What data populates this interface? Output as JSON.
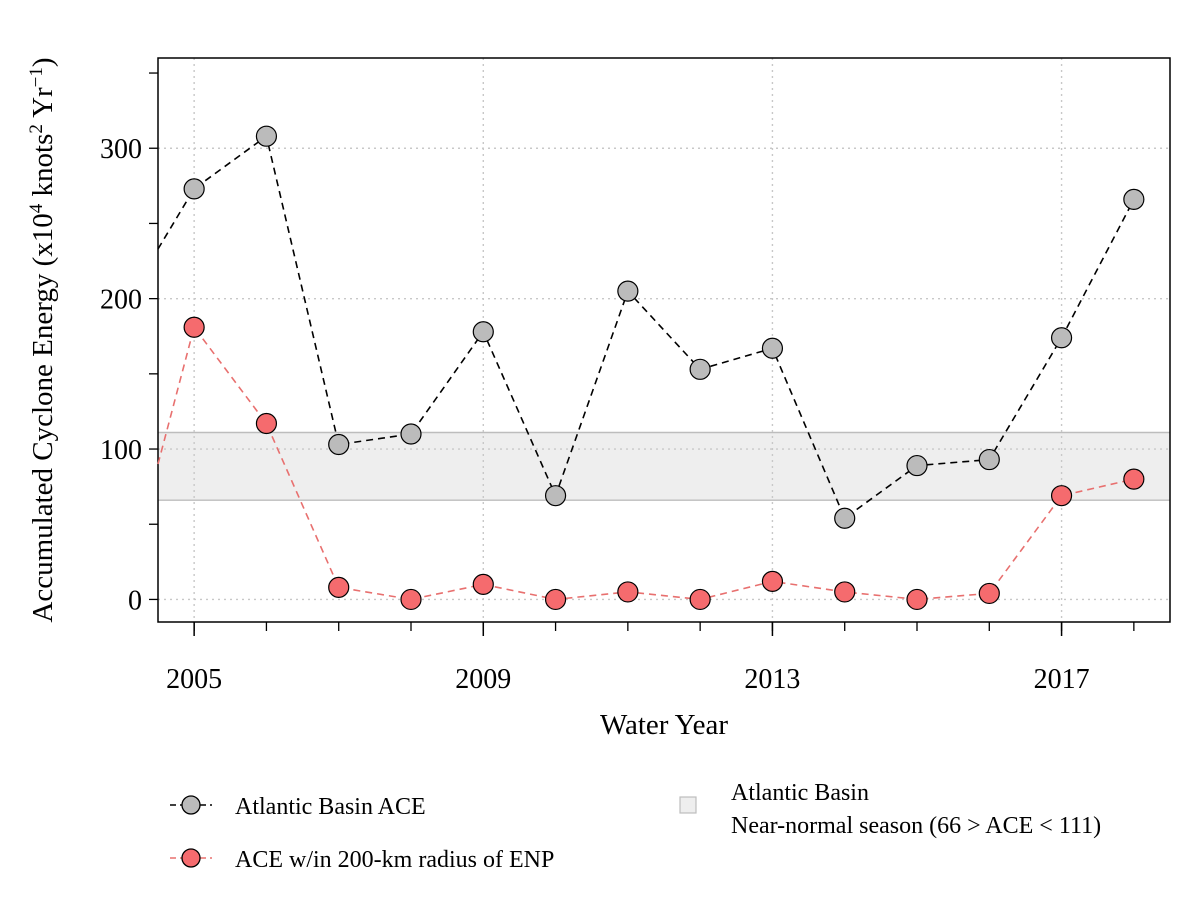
{
  "chart_data": {
    "type": "line",
    "xlabel": "Water Year",
    "ylabel_main": "Accumulated Cyclone Energy (x10",
    "ylabel_sup1": "4",
    "ylabel_mid": " knots",
    "ylabel_sup2": "2",
    "ylabel_mid2": " Yr",
    "ylabel_sup3": "−1",
    "ylabel_end": ")",
    "xlim": [
      2004.5,
      2018.5
    ],
    "ylim": [
      -15,
      360
    ],
    "x_ticks": [
      2005,
      2009,
      2013,
      2017
    ],
    "x_minor_ticks": [
      2005,
      2006,
      2007,
      2008,
      2009,
      2010,
      2011,
      2012,
      2013,
      2014,
      2015,
      2016,
      2017,
      2018
    ],
    "y_ticks": [
      0,
      100,
      200,
      300
    ],
    "y_minor_ticks": [
      0,
      50,
      100,
      150,
      200,
      250,
      300,
      350
    ],
    "grid": true,
    "band": {
      "label_line1": "Atlantic Basin",
      "label_line2": "Near-normal season (66 > ACE < 111)",
      "lower": 66,
      "upper": 111,
      "color": "#eeeeee"
    },
    "series": [
      {
        "name": "Atlantic Basin ACE",
        "color": "#000000",
        "marker_fill": "#bbbbbb",
        "line_from": [
          2004.5,
          233
        ],
        "x": [
          2005,
          2006,
          2007,
          2008,
          2009,
          2010,
          2011,
          2012,
          2013,
          2014,
          2015,
          2016,
          2017,
          2018
        ],
        "y": [
          273,
          308,
          103,
          110,
          178,
          69,
          205,
          153,
          167,
          54,
          89,
          93,
          174,
          266
        ]
      },
      {
        "name": "ACE w/in 200-km radius of ENP",
        "color": "#e8706f",
        "marker_fill": "#f56b6e",
        "line_from": [
          2004.5,
          90
        ],
        "x": [
          2005,
          2006,
          2007,
          2008,
          2009,
          2010,
          2011,
          2012,
          2013,
          2014,
          2015,
          2016,
          2017,
          2018
        ],
        "y": [
          181,
          117,
          8,
          0,
          10,
          0,
          5,
          0,
          12,
          5,
          0,
          4,
          69,
          80
        ]
      }
    ],
    "legend_placement": "bottom"
  }
}
